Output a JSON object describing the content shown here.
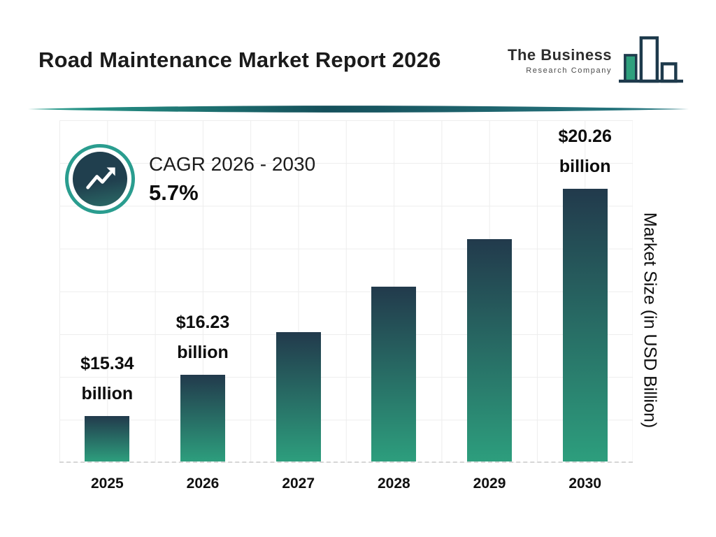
{
  "header": {
    "title": "Road Maintenance Market Report 2026",
    "logo": {
      "line1": "The Business",
      "line2": "Research Company"
    }
  },
  "cagr": {
    "label": "CAGR 2026 - 2030",
    "value": "5.7%"
  },
  "colors": {
    "accent_teal": "#2A9D8F",
    "brand_navy": "#1F3A4D",
    "bar_top": "#223A4C",
    "bar_bottom": "#2D9E7D"
  },
  "chart_data": {
    "type": "bar",
    "title": "Road Maintenance Market Report 2026",
    "categories": [
      "2025",
      "2026",
      "2027",
      "2028",
      "2029",
      "2030"
    ],
    "values": [
      15.34,
      16.23,
      17.16,
      18.14,
      19.17,
      20.26
    ],
    "value_labels": [
      [
        "$15.34",
        "billion"
      ],
      [
        "$16.23",
        "billion"
      ],
      null,
      null,
      null,
      [
        "$20.26",
        "billion"
      ]
    ],
    "xlabel": "",
    "ylabel": "Market Size (in USD Billion)",
    "ylim": [
      14.35,
      20.26
    ],
    "grid": true,
    "legend": "none",
    "bar_gradient": [
      "#223A4C",
      "#2D9E7D"
    ],
    "cagr_annotation": "CAGR 2026 - 2030 5.7%"
  }
}
